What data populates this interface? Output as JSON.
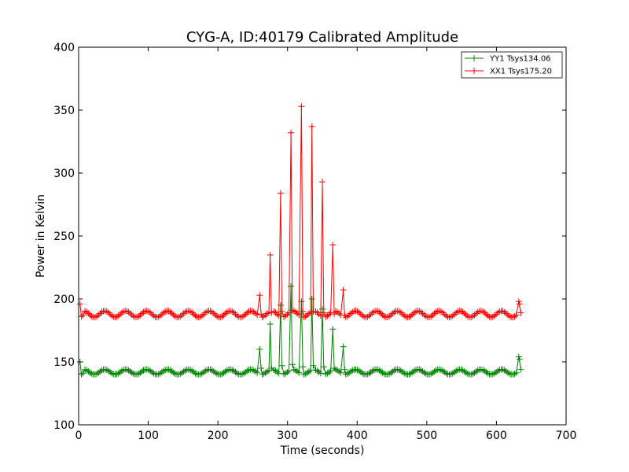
{
  "chart_data": {
    "type": "line",
    "title": "CYG-A, ID:40179 Calibrated Amplitude",
    "xlabel": "Time (seconds)",
    "ylabel": "Power in Kelvin",
    "xlim": [
      0,
      700
    ],
    "ylim": [
      100,
      400
    ],
    "xticks": [
      "0",
      "100",
      "200",
      "300",
      "400",
      "500",
      "600",
      "700"
    ],
    "yticks": [
      "100",
      "150",
      "200",
      "250",
      "300",
      "350",
      "400"
    ],
    "grid": false,
    "legend_position": "top-right",
    "series": [
      {
        "name": "YY1 Tsys134.06",
        "color": "#008000",
        "baseline": 142,
        "wobble": 2,
        "x": [
          2,
          4,
          6,
          260,
          262,
          275,
          277,
          290,
          292,
          305,
          307,
          320,
          322,
          335,
          337,
          350,
          352,
          365,
          367,
          380,
          382,
          632,
          633,
          635
        ],
        "y": [
          150,
          140,
          141,
          160,
          145,
          180,
          145,
          195,
          147,
          210,
          148,
          198,
          146,
          200,
          147,
          192,
          146,
          176,
          145,
          162,
          144,
          154,
          152,
          144
        ]
      },
      {
        "name": "XX1 Tsys175.20",
        "color": "#ff0000",
        "baseline": 188,
        "wobble": 2.5,
        "x": [
          2,
          4,
          6,
          260,
          262,
          275,
          277,
          290,
          292,
          305,
          307,
          320,
          322,
          335,
          337,
          350,
          352,
          365,
          367,
          380,
          382,
          632,
          633,
          635
        ],
        "y": [
          196,
          186,
          187,
          203,
          188,
          235,
          189,
          284,
          190,
          332,
          191,
          353,
          190,
          337,
          190,
          293,
          189,
          243,
          188,
          207,
          187,
          198,
          196,
          189
        ]
      }
    ]
  }
}
